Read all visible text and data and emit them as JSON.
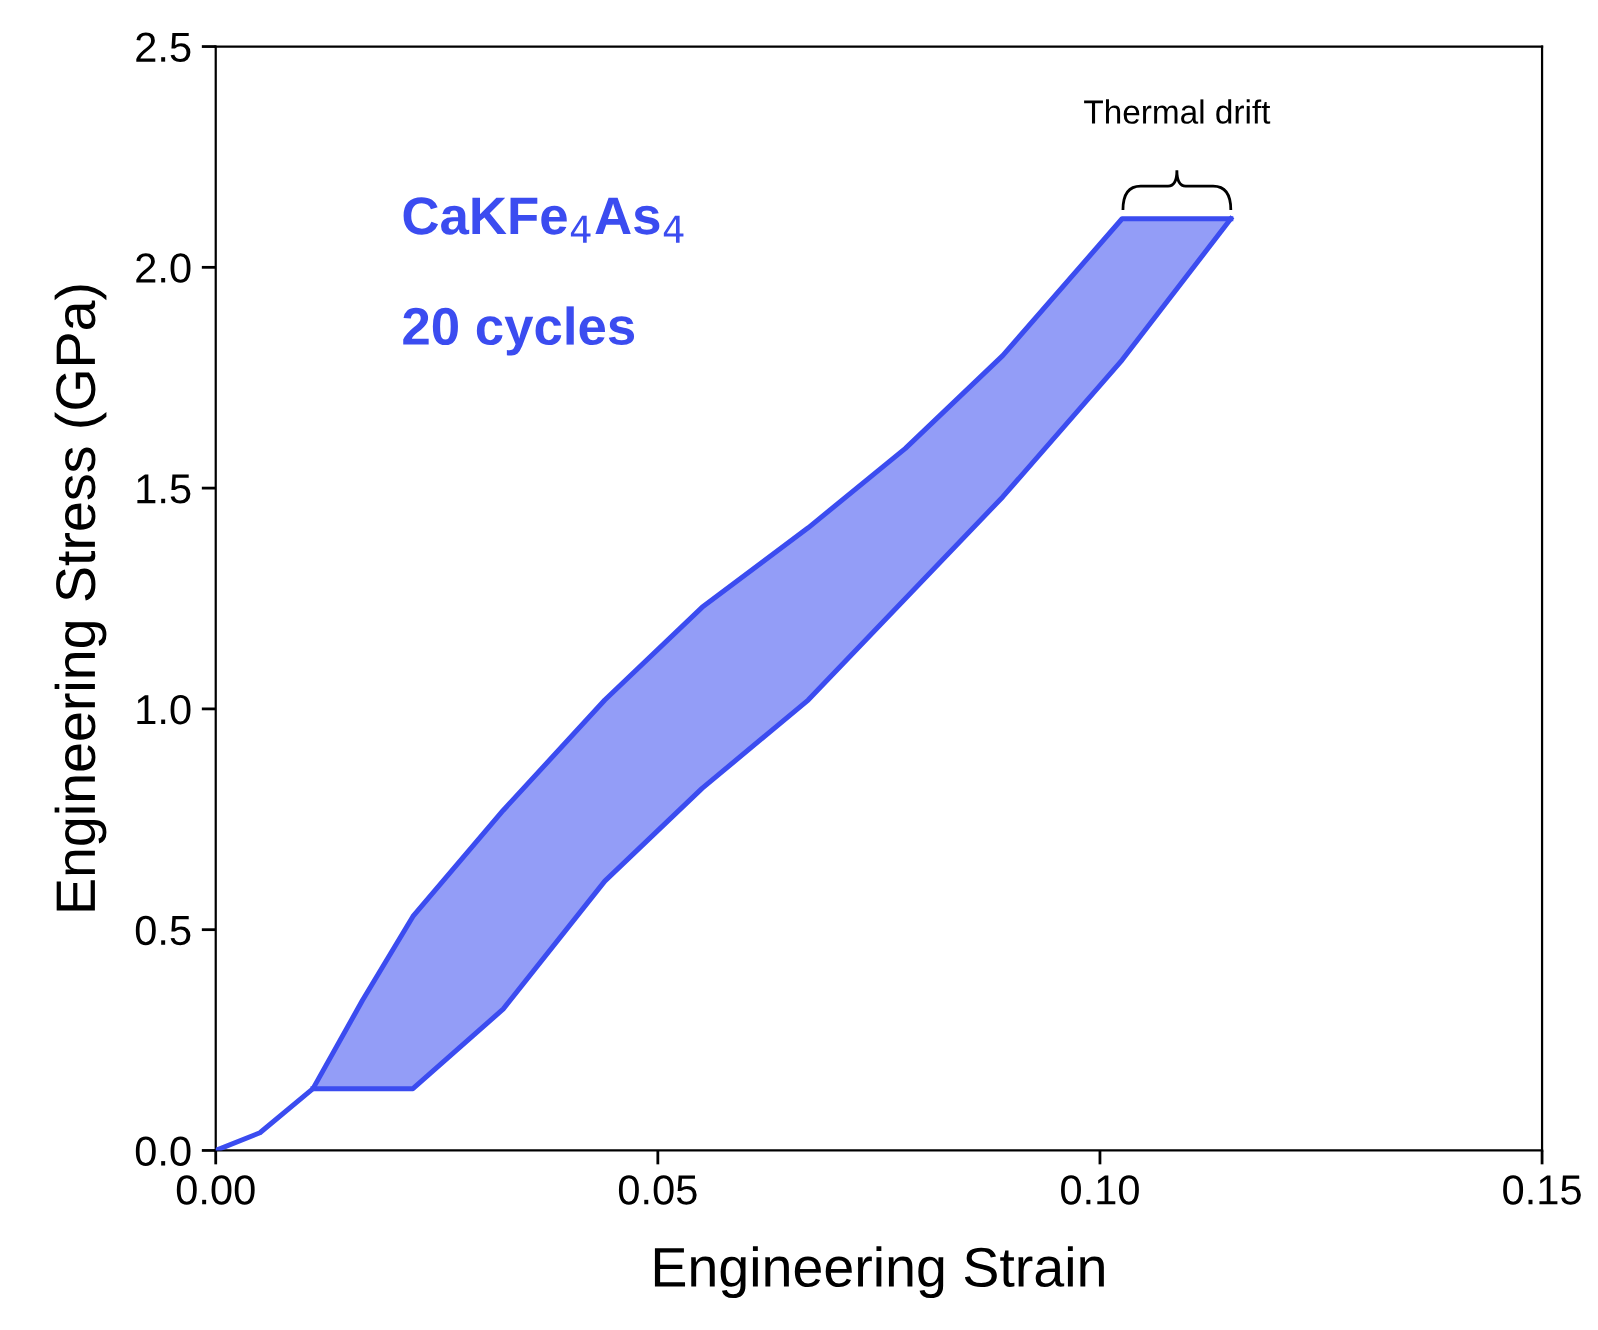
{
  "chart_data": {
    "type": "line",
    "xlabel": "Engineering Strain",
    "ylabel": "Engineering Stress (GPa)",
    "xlim": [
      0,
      0.15
    ],
    "ylim": [
      0,
      2.5
    ],
    "xticks": [
      {
        "value": 0,
        "label": "0.00"
      },
      0.05,
      {
        "value": 0.1,
        "label": "0.10"
      },
      0.15
    ],
    "yticks": [
      {
        "value": 0,
        "label": "0.0"
      },
      0.5,
      {
        "value": 1,
        "label": "1.0"
      },
      1.5,
      {
        "value": 2,
        "label": "2.0"
      },
      2.5
    ],
    "grid": false,
    "marker": "none",
    "line_style": "solid",
    "series": [
      {
        "color": "#3b4cf0",
        "x": [
          0,
          0.005,
          0.011,
          0.0166,
          0.0223,
          0.0325,
          0.044,
          0.055,
          0.067,
          0.078,
          0.089,
          0.1025,
          0.1148
        ],
        "values": [
          0,
          0.04,
          0.14,
          0.34,
          0.53,
          0.77,
          1.02,
          1.23,
          1.41,
          1.59,
          1.8,
          2.11,
          2.11
        ],
        "lower": [
          0,
          0.04,
          0.14,
          0.14,
          0.14,
          0.32,
          0.61,
          0.82,
          1.02,
          1.25,
          1.48,
          1.79,
          2.11
        ],
        "upper": [
          0,
          0.04,
          0.14,
          0.34,
          0.53,
          0.77,
          1.02,
          1.23,
          1.41,
          1.59,
          1.8,
          2.11,
          2.11
        ]
      },
      {
        "color": "#3b4cf0",
        "x": [
          0.011,
          0.0166,
          0.0223,
          0.0325,
          0.044,
          0.055,
          0.067,
          0.078,
          0.089,
          0.1025,
          0.1148
        ],
        "values": [
          0.14,
          0.14,
          0.14,
          0.32,
          0.61,
          0.82,
          1.02,
          1.25,
          1.48,
          1.79,
          2.11
        ]
      }
    ],
    "annotations": [
      "CaKFe$_{4}$As$_{4}$",
      "20 cycles",
      {
        "text": "Thermal drift",
        "x": 0.1087,
        "y": 2.11
      }
    ]
  }
}
